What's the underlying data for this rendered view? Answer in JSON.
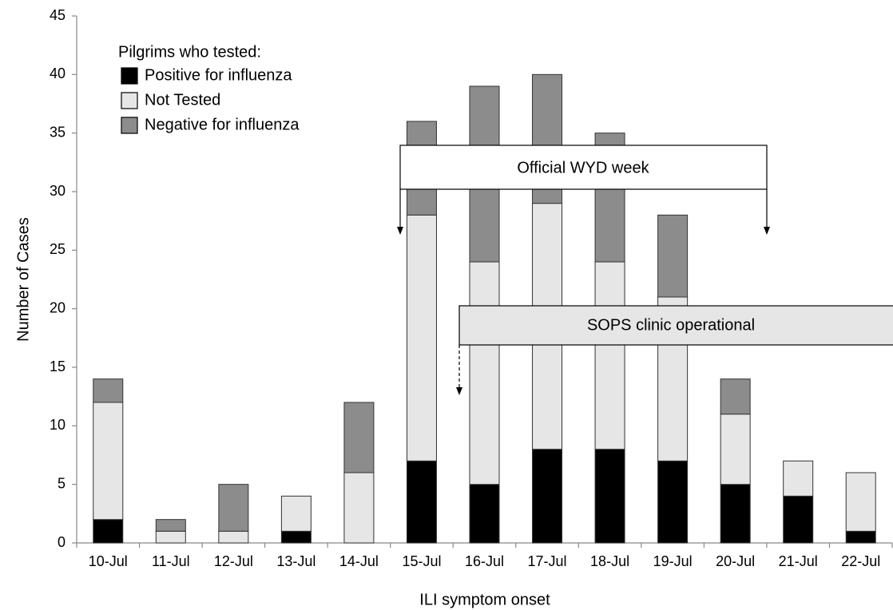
{
  "chart_data": {
    "type": "stacked_bar",
    "x_label": "ILI symptom onset",
    "y_label": "Number of Cases",
    "legend_title": "Pilgrims who tested:",
    "legend_position": "upper left",
    "categories": [
      "10-Jul",
      "11-Jul",
      "12-Jul",
      "13-Jul",
      "14-Jul",
      "15-Jul",
      "16-Jul",
      "17-Jul",
      "18-Jul",
      "19-Jul",
      "20-Jul",
      "21-Jul",
      "22-Jul"
    ],
    "series": [
      {
        "name": "Positive for influenza",
        "color": "#000000",
        "values": [
          2,
          0,
          0,
          1,
          0,
          7,
          5,
          8,
          8,
          7,
          5,
          4,
          1
        ]
      },
      {
        "name": "Not Tested",
        "color": "#e6e6e6",
        "values": [
          10,
          1,
          1,
          3,
          6,
          21,
          19,
          21,
          16,
          14,
          6,
          3,
          5
        ]
      },
      {
        "name": "Negative for influenza",
        "color": "#8c8c8c",
        "values": [
          2,
          1,
          4,
          0,
          6,
          8,
          15,
          11,
          11,
          7,
          3,
          0,
          0
        ]
      }
    ],
    "ylim": [
      0,
      45
    ],
    "yticks": [
      0,
      5,
      10,
      15,
      20,
      25,
      30,
      35,
      40,
      45
    ],
    "annotations": [
      "Official WYD week",
      "SOPS clinic operational"
    ]
  }
}
